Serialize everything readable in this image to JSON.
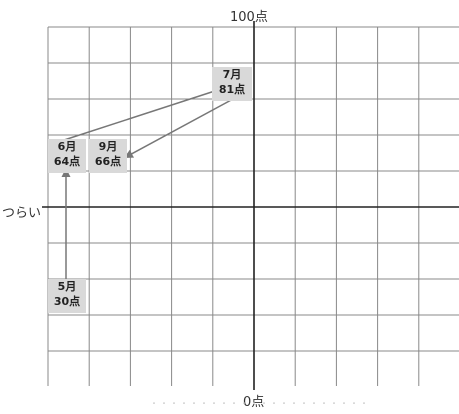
{
  "axis": {
    "top": "100点",
    "bottom": "0点",
    "left": "つらい"
  },
  "points": [
    {
      "month": "5月",
      "score": "30点"
    },
    {
      "month": "6月",
      "score": "64点"
    },
    {
      "month": "7月",
      "score": "81点"
    },
    {
      "month": "9月",
      "score": "66点"
    }
  ],
  "colors": {
    "grid": "#888888",
    "axis": "#222222",
    "box": "#d9d9d9",
    "arrow": "#777777"
  }
}
